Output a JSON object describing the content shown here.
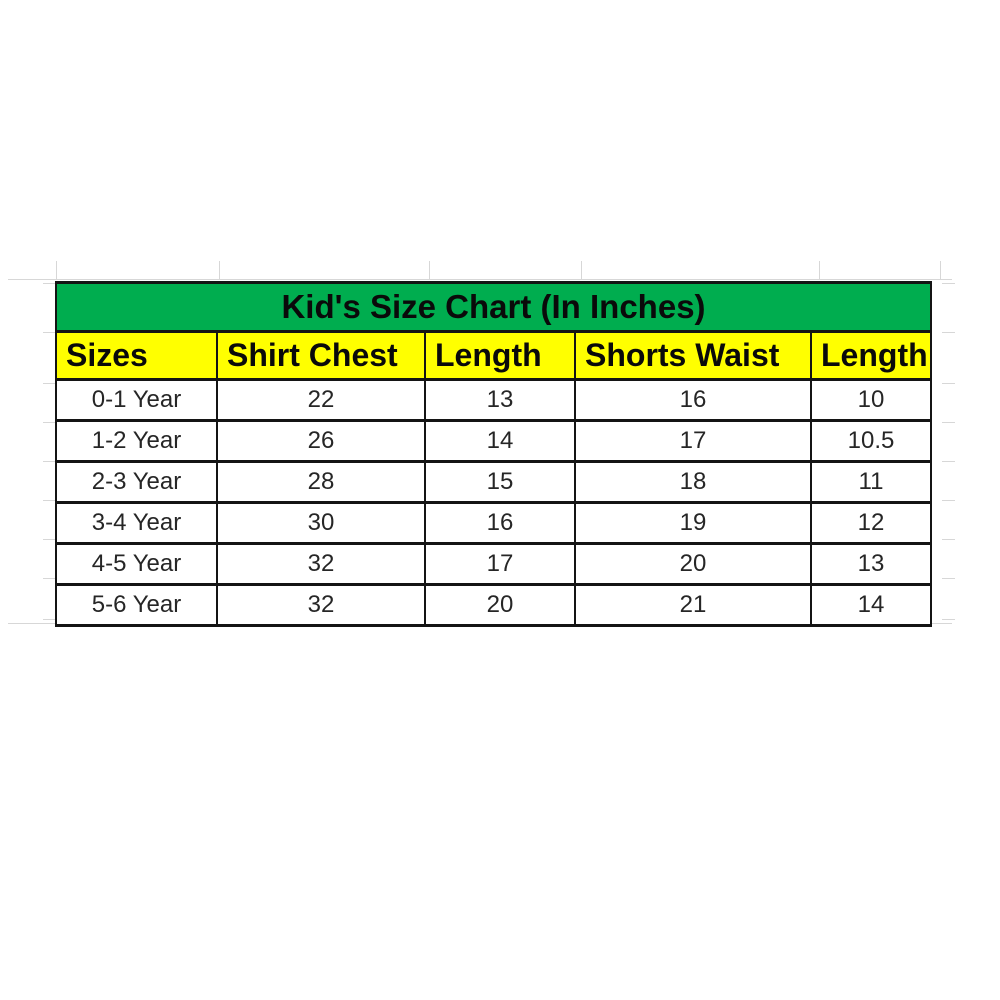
{
  "page": {
    "background": "#ffffff"
  },
  "colors": {
    "title_bg": "#00AD4F",
    "header_bg": "#FFFF00",
    "border": "#141414",
    "gridline": "#d7d7d7",
    "text": "#262626"
  },
  "chart_data": {
    "type": "table",
    "title": "Kid's Size Chart (In Inches)",
    "columns": [
      "Sizes",
      "Shirt Chest",
      "Length",
      "Shorts Waist",
      "Length"
    ],
    "rows": [
      [
        "0-1 Year",
        "22",
        "13",
        "16",
        "10"
      ],
      [
        "1-2 Year",
        "26",
        "14",
        "17",
        "10.5"
      ],
      [
        "2-3 Year",
        "28",
        "15",
        "18",
        "11"
      ],
      [
        "3-4 Year",
        "30",
        "16",
        "19",
        "12"
      ],
      [
        "4-5 Year",
        "32",
        "17",
        "20",
        "13"
      ],
      [
        "5-6 Year",
        "32",
        "20",
        "21",
        "14"
      ]
    ]
  }
}
